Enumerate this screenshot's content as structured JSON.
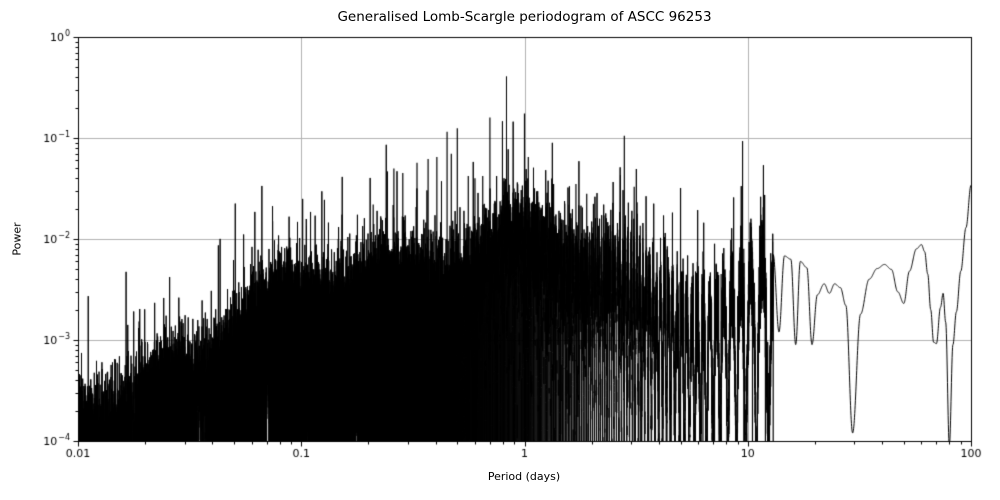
{
  "chart_data": {
    "type": "line",
    "title": "Generalised Lomb-Scargle periodogram of ASCC 96253",
    "xlabel": "Period (days)",
    "ylabel": "Power",
    "xscale": "log",
    "yscale": "log",
    "xlim": [
      0.01,
      100
    ],
    "ylim": [
      0.0001,
      1
    ],
    "grid": true,
    "legend": "none",
    "line_color": "#000000",
    "grid_color": "#b0b0b0",
    "x_ticks": [
      {
        "value": 0.01,
        "label": "0.01"
      },
      {
        "value": 0.1,
        "label": "0.1"
      },
      {
        "value": 1,
        "label": "1"
      },
      {
        "value": 10,
        "label": "10"
      },
      {
        "value": 100,
        "label": "100"
      }
    ],
    "y_ticks": [
      {
        "value": 1,
        "base": "10",
        "exp": "0"
      },
      {
        "value": 0.1,
        "base": "10",
        "exp": "−1"
      },
      {
        "value": 0.01,
        "base": "10",
        "exp": "−2"
      },
      {
        "value": 0.001,
        "base": "10",
        "exp": "−3"
      },
      {
        "value": 0.0001,
        "base": "10",
        "exp": "−4"
      }
    ],
    "envelope_points": [
      [
        0.01,
        0.00025
      ],
      [
        0.02,
        0.0004
      ],
      [
        0.03,
        0.0007
      ],
      [
        0.05,
        0.001
      ],
      [
        0.07,
        0.0015
      ],
      [
        0.1,
        0.0024
      ],
      [
        0.15,
        0.0038
      ],
      [
        0.2,
        0.005
      ],
      [
        0.3,
        0.0065
      ],
      [
        0.5,
        0.0075
      ],
      [
        1.0,
        0.0075
      ],
      [
        1.5,
        0.007
      ],
      [
        2.0,
        0.006
      ],
      [
        3.0,
        0.005
      ],
      [
        5.0,
        0.004
      ],
      [
        8.0,
        0.0035
      ],
      [
        13.0,
        0.004
      ]
    ],
    "notable_peaks": [
      [
        0.21,
        0.022
      ],
      [
        0.26,
        0.05
      ],
      [
        0.285,
        0.045
      ],
      [
        0.33,
        0.057
      ],
      [
        0.37,
        0.062
      ],
      [
        0.405,
        0.065
      ],
      [
        0.45,
        0.115
      ],
      [
        0.47,
        0.07
      ],
      [
        0.5,
        0.125
      ],
      [
        0.56,
        0.042
      ],
      [
        0.6,
        0.04
      ],
      [
        0.65,
        0.042
      ],
      [
        0.7,
        0.16
      ],
      [
        0.75,
        0.042
      ],
      [
        0.8,
        0.013
      ],
      [
        0.9,
        0.0105
      ],
      [
        1.0,
        0.175
      ],
      [
        1.04,
        0.065
      ],
      [
        1.1,
        0.022
      ],
      [
        1.15,
        0.017
      ],
      [
        1.35,
        0.035
      ],
      [
        1.45,
        0.017
      ],
      [
        1.7,
        0.035
      ],
      [
        1.9,
        0.028
      ],
      [
        2.15,
        0.0135
      ],
      [
        2.4,
        0.0085
      ],
      [
        2.8,
        0.105
      ],
      [
        3.1,
        0.033
      ],
      [
        3.3,
        0.0135
      ],
      [
        3.6,
        0.0075
      ],
      [
        5.0,
        0.032
      ],
      [
        6.3,
        0.0075
      ],
      [
        7.1,
        0.009
      ],
      [
        7.6,
        0.0045
      ],
      [
        9.6,
        0.008
      ],
      [
        10.5,
        0.0075
      ],
      [
        12.0,
        0.0065
      ],
      [
        13.0,
        0.007
      ]
    ],
    "smooth_tail_points": [
      [
        13.0,
        0.007
      ],
      [
        13.8,
        0.0012
      ],
      [
        14.6,
        0.0068
      ],
      [
        15.6,
        0.0063
      ],
      [
        16.4,
        0.0009
      ],
      [
        17.2,
        0.006
      ],
      [
        18.4,
        0.0052
      ],
      [
        19.4,
        0.0009
      ],
      [
        20.5,
        0.0028
      ],
      [
        22,
        0.0036
      ],
      [
        23.2,
        0.0029
      ],
      [
        24.5,
        0.0036
      ],
      [
        26,
        0.0033
      ],
      [
        27.5,
        0.0022
      ],
      [
        29.5,
        0.00012
      ],
      [
        32,
        0.0018
      ],
      [
        35,
        0.004
      ],
      [
        38,
        0.0051
      ],
      [
        41,
        0.0056
      ],
      [
        44,
        0.005
      ],
      [
        47,
        0.003
      ],
      [
        50,
        0.0023
      ],
      [
        53,
        0.0048
      ],
      [
        57,
        0.008
      ],
      [
        60,
        0.0088
      ],
      [
        62,
        0.0075
      ],
      [
        64,
        0.0045
      ],
      [
        66,
        0.002
      ],
      [
        68,
        0.00095
      ],
      [
        70,
        0.00092
      ],
      [
        73,
        0.0021
      ],
      [
        75,
        0.0029
      ],
      [
        77,
        0.0015
      ],
      [
        80,
        9e-05
      ],
      [
        83,
        0.0009
      ],
      [
        86,
        0.0019
      ],
      [
        90,
        0.0048
      ],
      [
        95,
        0.013
      ],
      [
        100,
        0.034
      ]
    ],
    "render_params": {
      "window_span_days": 100,
      "osc_exponent": 2.6,
      "osc_floor": 0.004,
      "jitter_log_sigma": 0.22,
      "spike_probability": 0.015,
      "seed": 42,
      "samples": 26000,
      "dense_max_period": 13
    }
  }
}
